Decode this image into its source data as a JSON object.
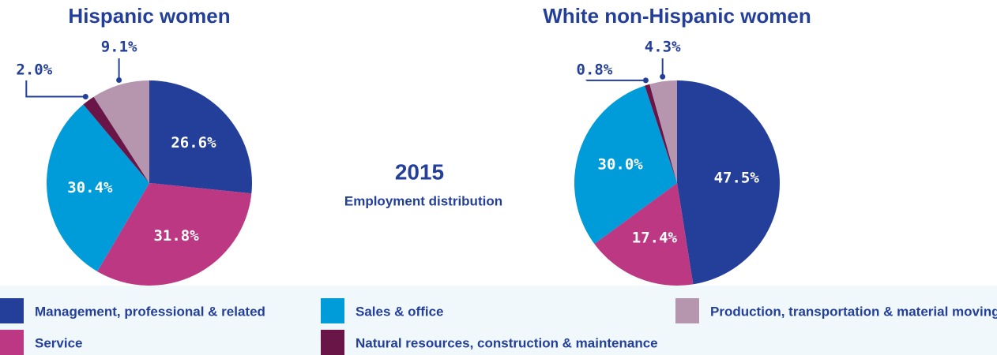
{
  "center": {
    "year": "2015",
    "caption": "Employment distribution"
  },
  "chart_data": [
    {
      "type": "pie",
      "title": "Hispanic women",
      "categories": [
        "Management, professional & related",
        "Service",
        "Sales & office",
        "Natural resources, construction & maintenance",
        "Production, transportation & material moving"
      ],
      "values": [
        26.6,
        31.8,
        30.4,
        2.0,
        9.1
      ],
      "value_labels": [
        "26.6%",
        "31.8%",
        "30.4%",
        "2.0%",
        "9.1%"
      ],
      "colors": [
        "#233f99",
        "#bd3882",
        "#009bd9",
        "#6a1547",
        "#b596ae"
      ]
    },
    {
      "type": "pie",
      "title": "White non-Hispanic women",
      "categories": [
        "Management, professional & related",
        "Service",
        "Sales & office",
        "Natural resources, construction & maintenance",
        "Production, transportation & material moving"
      ],
      "values": [
        47.5,
        17.4,
        30.0,
        0.8,
        4.3
      ],
      "value_labels": [
        "47.5%",
        "17.4%",
        "30.0%",
        "0.8%",
        "4.3%"
      ],
      "colors": [
        "#233f99",
        "#bd3882",
        "#009bd9",
        "#6a1547",
        "#b596ae"
      ]
    }
  ]
}
